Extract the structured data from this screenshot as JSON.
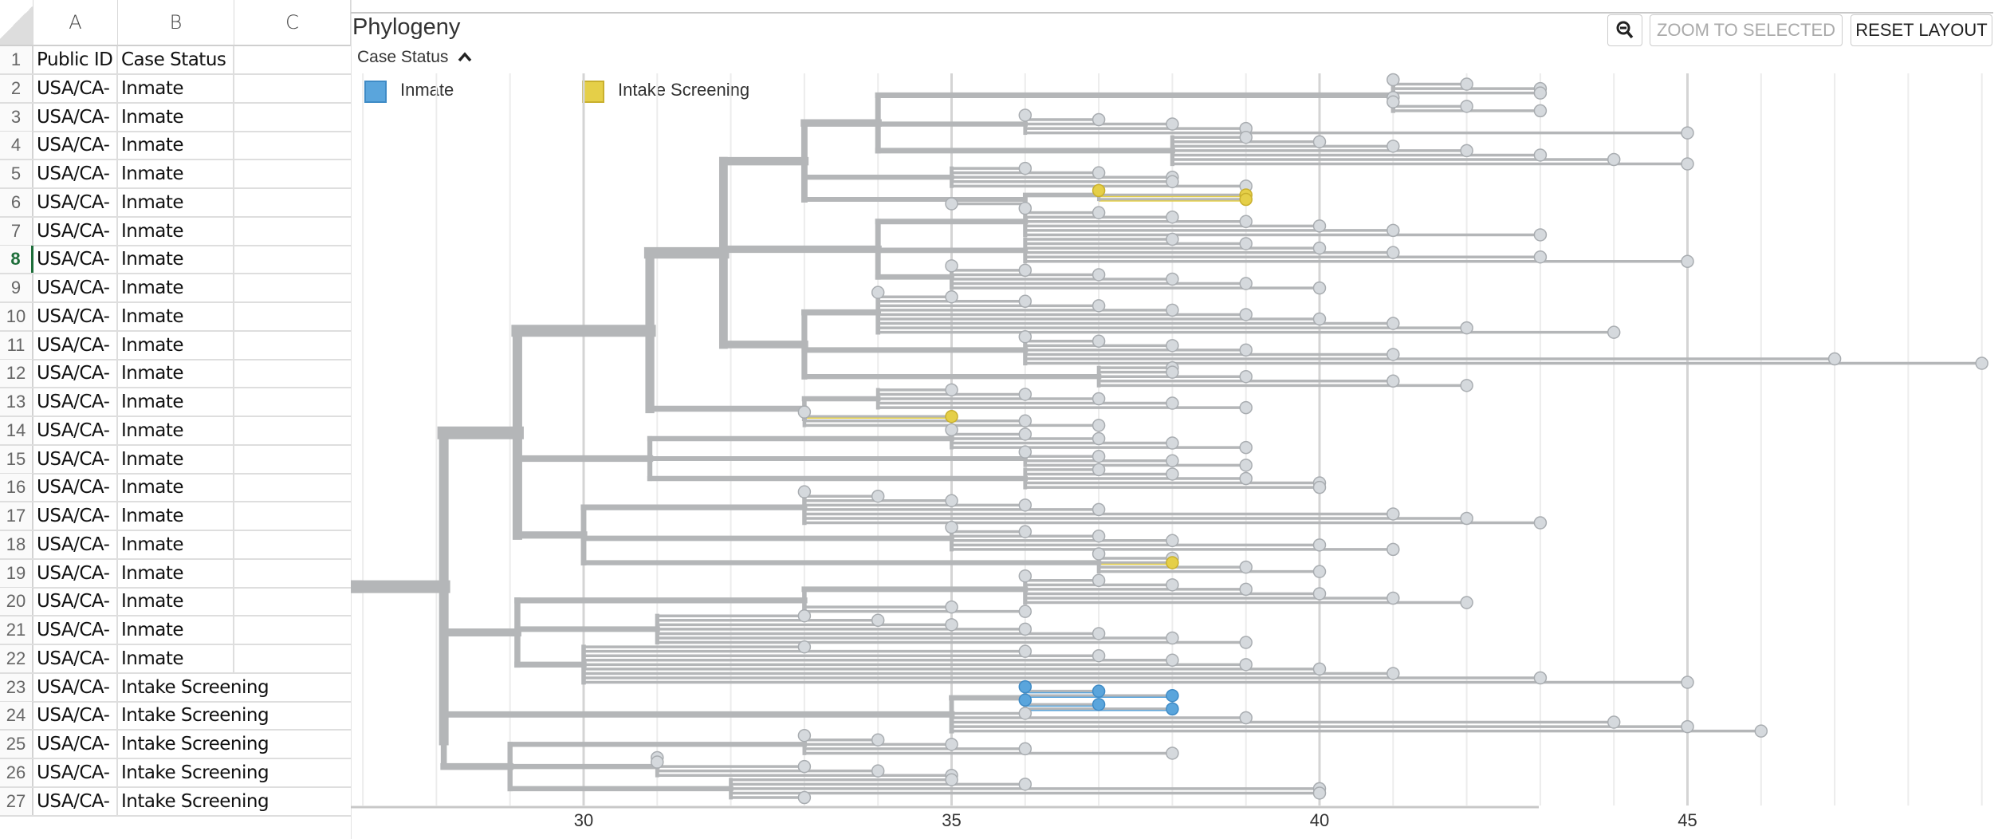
{
  "spreadsheet": {
    "columns": [
      "A",
      "B",
      "C"
    ],
    "selected_row": 8,
    "rows": [
      {
        "n": "1",
        "a": "Public ID",
        "b": "Case Status"
      },
      {
        "n": "2",
        "a": "USA/CA-",
        "b": "Inmate"
      },
      {
        "n": "3",
        "a": "USA/CA-",
        "b": "Inmate"
      },
      {
        "n": "4",
        "a": "USA/CA-",
        "b": "Inmate"
      },
      {
        "n": "5",
        "a": "USA/CA-",
        "b": "Inmate"
      },
      {
        "n": "6",
        "a": "USA/CA-",
        "b": "Inmate"
      },
      {
        "n": "7",
        "a": "USA/CA-",
        "b": "Inmate"
      },
      {
        "n": "8",
        "a": "USA/CA-",
        "b": "Inmate"
      },
      {
        "n": "9",
        "a": "USA/CA-",
        "b": "Inmate"
      },
      {
        "n": "10",
        "a": "USA/CA-",
        "b": "Inmate"
      },
      {
        "n": "11",
        "a": "USA/CA-",
        "b": "Inmate"
      },
      {
        "n": "12",
        "a": "USA/CA-",
        "b": "Inmate"
      },
      {
        "n": "13",
        "a": "USA/CA-",
        "b": "Inmate"
      },
      {
        "n": "14",
        "a": "USA/CA-",
        "b": "Inmate"
      },
      {
        "n": "15",
        "a": "USA/CA-",
        "b": "Inmate"
      },
      {
        "n": "16",
        "a": "USA/CA-",
        "b": "Inmate"
      },
      {
        "n": "17",
        "a": "USA/CA-",
        "b": "Inmate"
      },
      {
        "n": "18",
        "a": "USA/CA-",
        "b": "Inmate"
      },
      {
        "n": "19",
        "a": "USA/CA-",
        "b": "Inmate"
      },
      {
        "n": "20",
        "a": "USA/CA-",
        "b": "Inmate"
      },
      {
        "n": "21",
        "a": "USA/CA-",
        "b": "Inmate"
      },
      {
        "n": "22",
        "a": "USA/CA-",
        "b": "Inmate"
      },
      {
        "n": "23",
        "a": "USA/CA-",
        "b": "Intake Screening"
      },
      {
        "n": "24",
        "a": "USA/CA-",
        "b": "Intake Screening"
      },
      {
        "n": "25",
        "a": "USA/CA-",
        "b": "Intake Screening"
      },
      {
        "n": "26",
        "a": "USA/CA-",
        "b": "Intake Screening"
      },
      {
        "n": "27",
        "a": "USA/CA-",
        "b": "Intake Screening"
      }
    ]
  },
  "panel": {
    "title": "Phylogeny",
    "zoom_out_icon": "magnifier-minus-icon",
    "zoom_to_selected": "ZOOM TO SELECTED",
    "reset_layout": "RESET LAYOUT",
    "legend_title": "Case Status",
    "legend_toggle_icon": "chevron-up-icon",
    "legend": [
      {
        "label": "Inmate",
        "color": "#5aa5dc"
      },
      {
        "label": "Intake Screening",
        "color": "#e5cf48"
      }
    ]
  },
  "chart_data": {
    "type": "phylogenetic-tree",
    "x_ticks": [
      "30",
      "35",
      "40",
      "45"
    ],
    "xlim": [
      26.9,
      49.5
    ],
    "grid": true,
    "branch_color": "#b4b6b8",
    "tip_color": "#d5d9dd",
    "status_colors": {
      "Inmate": "#5aa5dc",
      "Intake Screening": "#e5cf48"
    },
    "tree": {
      "t": 26.9,
      "c": [
        {
          "t": 28.1,
          "c": [
            {
              "t": 29.1,
              "c": [
                {
                  "t": 30.9,
                  "c": [
                    {
                      "t": 31.9,
                      "c": [
                        {
                          "t": 33,
                          "c": [
                            {
                              "t": 34,
                              "c": [
                                {
                                  "t": 41,
                                  "c": [
                                    41,
                                    42,
                                    43,
                                    43,
                                    41,
                                    41,
                                    42,
                                    43
                                  ]
                                },
                                {
                                  "t": 36,
                                  "c": [
                                    36,
                                    37,
                                    38,
                                    39,
                                    45
                                  ]
                                },
                                {
                                  "t": 38,
                                  "c": [
                                    39,
                                    40,
                                    41,
                                    42,
                                    43,
                                    44,
                                    45
                                  ]
                                }
                              ]
                            },
                            {
                              "t": 35,
                              "c": [
                                36,
                                37,
                                38,
                                38,
                                39
                              ]
                            },
                            {
                              "t": 36,
                              "c": [
                                {
                                  "t": 37,
                                  "c": [
                                    [
                                      37,
                                      "Intake Screening"
                                    ],
                                    [
                                      39,
                                      "Intake Screening"
                                    ],
                                    [
                                      39,
                                      "Intake Screening"
                                    ]
                                  ]
                                },
                                35
                              ]
                            }
                          ]
                        },
                        {
                          "t": 34,
                          "c": [
                            {
                              "t": 36,
                              "c": [
                                36,
                                37,
                                38,
                                39,
                                40,
                                41,
                                43
                              ]
                            },
                            {
                              "t": 36,
                              "c": [
                                38,
                                39,
                                40,
                                41,
                                43,
                                45
                              ]
                            },
                            {
                              "t": 35,
                              "c": [
                                35,
                                36,
                                37,
                                38,
                                39,
                                40
                              ]
                            }
                          ]
                        },
                        {
                          "t": 33,
                          "c": [
                            {
                              "t": 34,
                              "c": [
                                34,
                                35,
                                36,
                                37,
                                38,
                                39,
                                40,
                                41,
                                42,
                                44
                              ]
                            },
                            {
                              "t": 36,
                              "c": [
                                36,
                                37,
                                38,
                                39,
                                41,
                                47,
                                49
                              ]
                            },
                            {
                              "t": 37,
                              "c": [
                                38,
                                38,
                                39,
                                41,
                                42
                              ]
                            }
                          ]
                        }
                      ]
                    },
                    {
                      "t": 33,
                      "c": [
                        {
                          "t": 34,
                          "c": [
                            35,
                            36,
                            37,
                            38,
                            39
                          ]
                        },
                        {
                          "t": 33,
                          "c": [
                            33,
                            [
                              35,
                              "Intake Screening"
                            ],
                            36,
                            37
                          ]
                        }
                      ]
                    }
                  ]
                },
                {
                  "t": 30.9,
                  "c": [
                    {
                      "t": 35,
                      "c": [
                        35,
                        36,
                        37,
                        38,
                        39
                      ]
                    },
                    {
                      "t": 36,
                      "c": [
                        36,
                        37,
                        38,
                        39
                      ]
                    },
                    {
                      "t": 36,
                      "c": [
                        37,
                        38,
                        39,
                        40,
                        40
                      ]
                    }
                  ]
                },
                {
                  "t": 30,
                  "c": [
                    {
                      "t": 33,
                      "c": [
                        33,
                        34,
                        35,
                        36,
                        37,
                        41,
                        42,
                        43
                      ]
                    },
                    {
                      "t": 35,
                      "c": [
                        35,
                        36,
                        37,
                        38,
                        40,
                        41
                      ]
                    },
                    {
                      "t": 37,
                      "c": [
                        37,
                        38,
                        [
                          38,
                          "Intake Screening"
                        ],
                        39,
                        40
                      ]
                    }
                  ]
                }
              ]
            },
            {
              "t": 29.1,
              "c": [
                {
                  "t": 33,
                  "c": [
                    {
                      "t": 36,
                      "c": [
                        36,
                        37,
                        38,
                        39,
                        40,
                        41,
                        42
                      ]
                    },
                    35,
                    36
                  ]
                },
                {
                  "t": 31,
                  "c": [
                    33,
                    34,
                    35,
                    36,
                    37,
                    38,
                    39
                  ]
                },
                {
                  "t": 30,
                  "c": [
                    33,
                    36,
                    37,
                    38,
                    39,
                    40,
                    41,
                    43,
                    45
                  ]
                }
              ]
            },
            {
              "t": 28.1,
              "c": [
                {
                  "t": 35,
                  "c": [
                    {
                      "t": 36,
                      "c": [
                        [
                          36,
                          "Inmate"
                        ],
                        [
                          37,
                          "Inmate"
                        ],
                        [
                          38,
                          "Inmate"
                        ],
                        [
                          36,
                          "Inmate"
                        ],
                        [
                          37,
                          "Inmate"
                        ],
                        [
                          38,
                          "Inmate"
                        ]
                      ]
                    },
                    36,
                    39,
                    44,
                    45,
                    46
                  ]
                },
                {
                  "t": 29,
                  "c": [
                    {
                      "t": 33,
                      "c": [
                        33,
                        34,
                        35,
                        36,
                        38
                      ]
                    },
                    {
                      "t": 31,
                      "c": [
                        31,
                        31,
                        33,
                        34,
                        35
                      ]
                    },
                    {
                      "t": 32,
                      "c": [
                        35,
                        36,
                        40,
                        40,
                        33
                      ]
                    }
                  ]
                }
              ]
            }
          ]
        }
      ]
    }
  }
}
